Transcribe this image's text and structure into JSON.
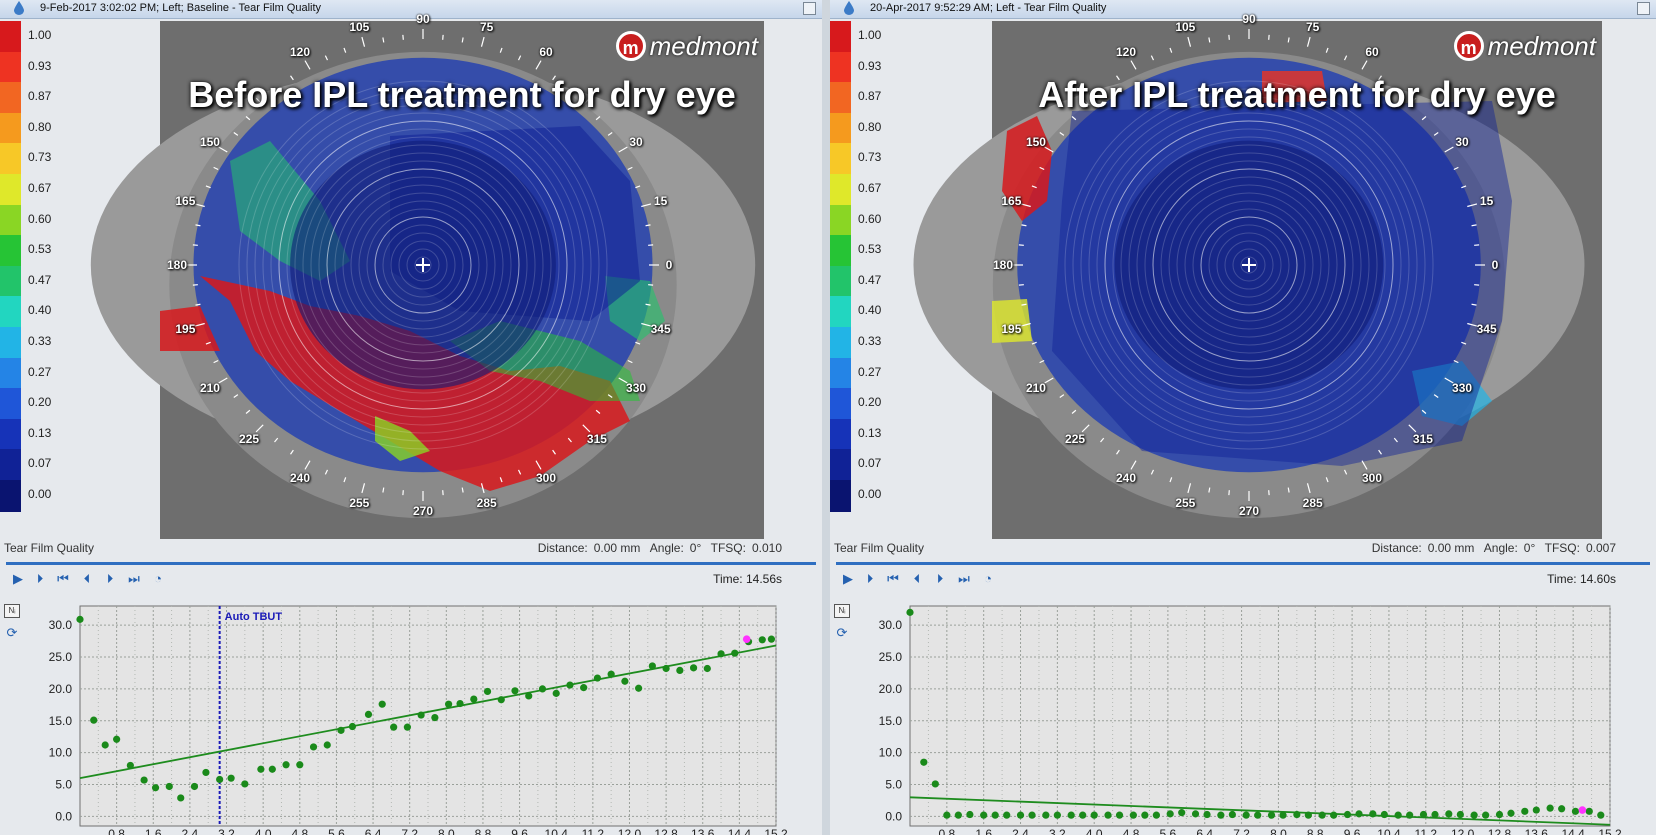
{
  "colors": {
    "fit_line": "#1e8c1e",
    "point": "#1a8a1a",
    "current_point": "#ff33ff",
    "tbut_line": "#1a1ab8",
    "accent": "#2f6fc1"
  },
  "scale": {
    "labels": [
      "1.00",
      "0.93",
      "0.87",
      "0.80",
      "0.73",
      "0.67",
      "0.60",
      "0.53",
      "0.47",
      "0.40",
      "0.33",
      "0.27",
      "0.20",
      "0.13",
      "0.07",
      "0.00"
    ],
    "colors": [
      "#d7191c",
      "#ee3322",
      "#f26622",
      "#f59a1e",
      "#f7c827",
      "#dfe82a",
      "#8ad624",
      "#26c435",
      "#22c46a",
      "#22d6c0",
      "#22b4e6",
      "#2484e6",
      "#1f56d8",
      "#1633b8",
      "#102296",
      "#0a1470"
    ]
  },
  "degree_labels": [
    "90",
    "75",
    "60",
    "30",
    "15",
    "0",
    "345",
    "330",
    "315",
    "300",
    "285",
    "270",
    "255",
    "240",
    "225",
    "210",
    "195",
    "180",
    "165",
    "150",
    "120",
    "105"
  ],
  "panels": [
    {
      "title": "9-Feb-2017 3:02:02 PM; Left; Baseline - Tear Film Quality",
      "headline": "Before IPL treatment for dry eye",
      "logo": "medmont",
      "status_left": "Tear Film Quality",
      "distance_label": "Distance:",
      "distance_value": "0.00 mm",
      "angle_label": "Angle:",
      "angle_value": "0°",
      "tfsq_label": "TFSQ:",
      "tfsq_value": "0.010",
      "time_label": "Time:",
      "time_value": "14.56s",
      "icons": [
        "play-icon",
        "play-circle-icon",
        "skip-start-icon",
        "step-back-icon",
        "step-forward-icon",
        "skip-end-icon",
        "speed-gauge-icon"
      ],
      "tbut_label": "Auto TBUT"
    },
    {
      "title": "20-Apr-2017 9:52:29 AM; Left - Tear Film Quality",
      "headline": "After IPL treatment for dry eye",
      "logo": "medmont",
      "status_left": "Tear Film Quality",
      "distance_label": "Distance:",
      "distance_value": "0.00 mm",
      "angle_label": "Angle:",
      "angle_value": "0°",
      "tfsq_label": "TFSQ:",
      "tfsq_value": "0.007",
      "time_label": "Time:",
      "time_value": "14.60s",
      "icons": [
        "play-icon",
        "play-circle-icon",
        "skip-start-icon",
        "step-back-icon",
        "step-forward-icon",
        "skip-end-icon",
        "speed-gauge-icon"
      ],
      "tbut_label": ""
    }
  ],
  "chart_data": [
    {
      "type": "scatter",
      "x_ticks": [
        "0.8",
        "1.6",
        "2.4",
        "3.2",
        "4.0",
        "4.8",
        "5.6",
        "6.4",
        "7.2",
        "8.0",
        "8.8",
        "9.6",
        "10.4",
        "11.2",
        "12.0",
        "12.8",
        "13.6",
        "14.4",
        "15.2"
      ],
      "y_ticks": [
        "0.0",
        "5.0",
        "10.0",
        "15.0",
        "20.0",
        "25.0",
        "30.0"
      ],
      "xlim": [
        0,
        15.2
      ],
      "ylim": [
        -1.5,
        33
      ],
      "grid": true,
      "tbut_x": 3.05,
      "fit_line": [
        [
          0,
          6.0
        ],
        [
          15.2,
          26.8
        ]
      ],
      "current_point": [
        14.56,
        27.8
      ],
      "points": [
        [
          0,
          30.9
        ],
        [
          0.3,
          15.1
        ],
        [
          0.55,
          11.2
        ],
        [
          0.8,
          12.1
        ],
        [
          1.1,
          8.0
        ],
        [
          1.4,
          5.7
        ],
        [
          1.65,
          4.5
        ],
        [
          1.95,
          4.7
        ],
        [
          2.2,
          2.9
        ],
        [
          2.5,
          4.7
        ],
        [
          2.75,
          6.9
        ],
        [
          3.05,
          5.8
        ],
        [
          3.3,
          6.0
        ],
        [
          3.6,
          5.1
        ],
        [
          3.95,
          7.4
        ],
        [
          4.2,
          7.4
        ],
        [
          4.5,
          8.1
        ],
        [
          4.8,
          8.1
        ],
        [
          5.1,
          10.9
        ],
        [
          5.4,
          11.2
        ],
        [
          5.7,
          13.5
        ],
        [
          5.95,
          14.1
        ],
        [
          6.3,
          16.0
        ],
        [
          6.6,
          17.6
        ],
        [
          6.85,
          14.0
        ],
        [
          7.15,
          14.0
        ],
        [
          7.45,
          15.9
        ],
        [
          7.75,
          15.5
        ],
        [
          8.05,
          17.6
        ],
        [
          8.3,
          17.7
        ],
        [
          8.6,
          18.4
        ],
        [
          8.9,
          19.6
        ],
        [
          9.2,
          18.3
        ],
        [
          9.5,
          19.7
        ],
        [
          9.8,
          18.9
        ],
        [
          10.1,
          20.0
        ],
        [
          10.4,
          19.3
        ],
        [
          10.7,
          20.6
        ],
        [
          11.0,
          20.2
        ],
        [
          11.3,
          21.7
        ],
        [
          11.6,
          22.3
        ],
        [
          11.9,
          21.2
        ],
        [
          12.2,
          20.1
        ],
        [
          12.5,
          23.6
        ],
        [
          12.8,
          23.2
        ],
        [
          13.1,
          22.9
        ],
        [
          13.4,
          23.3
        ],
        [
          13.7,
          23.2
        ],
        [
          14.0,
          25.5
        ],
        [
          14.3,
          25.6
        ],
        [
          14.6,
          27.4
        ],
        [
          14.9,
          27.7
        ],
        [
          15.1,
          27.8
        ]
      ]
    },
    {
      "type": "scatter",
      "x_ticks": [
        "0.8",
        "1.6",
        "2.4",
        "3.2",
        "4.0",
        "4.8",
        "5.6",
        "6.4",
        "7.2",
        "8.0",
        "8.8",
        "9.6",
        "10.4",
        "11.2",
        "12.0",
        "12.8",
        "13.6",
        "14.4",
        "15.2"
      ],
      "y_ticks": [
        "0.0",
        "5.0",
        "10.0",
        "15.0",
        "20.0",
        "25.0",
        "30.0"
      ],
      "xlim": [
        0,
        15.2
      ],
      "ylim": [
        -1.5,
        33
      ],
      "grid": true,
      "fit_line": [
        [
          0,
          3.0
        ],
        [
          15.2,
          -1.3
        ]
      ],
      "current_point": [
        14.6,
        1.0
      ],
      "points": [
        [
          0,
          32.0
        ],
        [
          0.3,
          8.5
        ],
        [
          0.55,
          5.1
        ],
        [
          0.8,
          0.2
        ],
        [
          1.05,
          0.2
        ],
        [
          1.3,
          0.3
        ],
        [
          1.6,
          0.2
        ],
        [
          1.85,
          0.2
        ],
        [
          2.1,
          0.2
        ],
        [
          2.4,
          0.2
        ],
        [
          2.65,
          0.2
        ],
        [
          2.95,
          0.2
        ],
        [
          3.2,
          0.2
        ],
        [
          3.5,
          0.2
        ],
        [
          3.75,
          0.2
        ],
        [
          4.0,
          0.2
        ],
        [
          4.3,
          0.2
        ],
        [
          4.55,
          0.2
        ],
        [
          4.85,
          0.2
        ],
        [
          5.1,
          0.2
        ],
        [
          5.35,
          0.2
        ],
        [
          5.65,
          0.4
        ],
        [
          5.9,
          0.6
        ],
        [
          6.2,
          0.4
        ],
        [
          6.45,
          0.3
        ],
        [
          6.75,
          0.2
        ],
        [
          7.0,
          0.3
        ],
        [
          7.3,
          0.2
        ],
        [
          7.55,
          0.2
        ],
        [
          7.85,
          0.2
        ],
        [
          8.1,
          0.2
        ],
        [
          8.4,
          0.3
        ],
        [
          8.65,
          0.2
        ],
        [
          8.95,
          0.2
        ],
        [
          9.2,
          0.2
        ],
        [
          9.5,
          0.3
        ],
        [
          9.75,
          0.4
        ],
        [
          10.05,
          0.4
        ],
        [
          10.3,
          0.3
        ],
        [
          10.6,
          0.2
        ],
        [
          10.85,
          0.2
        ],
        [
          11.15,
          0.3
        ],
        [
          11.4,
          0.3
        ],
        [
          11.7,
          0.4
        ],
        [
          11.95,
          0.3
        ],
        [
          12.25,
          0.2
        ],
        [
          12.5,
          0.2
        ],
        [
          12.8,
          0.3
        ],
        [
          13.05,
          0.5
        ],
        [
          13.35,
          0.8
        ],
        [
          13.6,
          1.0
        ],
        [
          13.9,
          1.3
        ],
        [
          14.15,
          1.2
        ],
        [
          14.45,
          0.8
        ],
        [
          14.75,
          0.8
        ],
        [
          15.0,
          0.2
        ]
      ]
    }
  ]
}
